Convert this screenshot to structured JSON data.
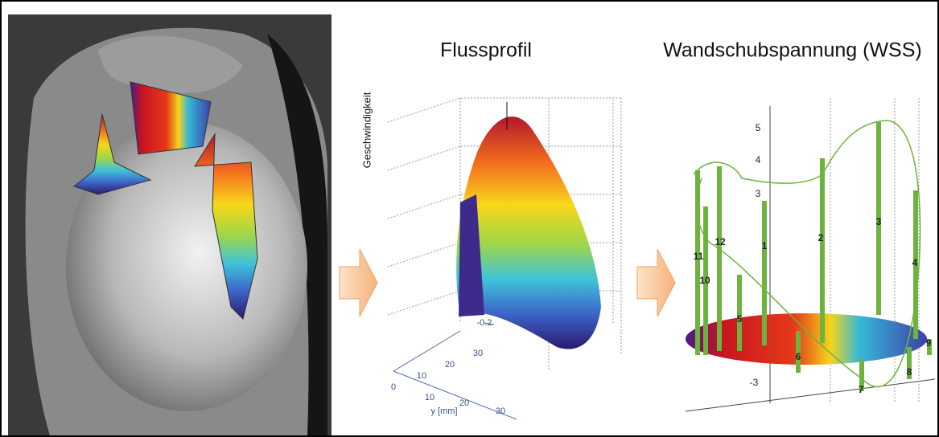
{
  "panels": [
    {
      "title": "Flussprofil",
      "axis_label": "Geschwindigkeit",
      "tick_labels": [
        "-0.2",
        "0",
        "10",
        "20",
        "30",
        "10",
        "20",
        "30",
        "y [mm]"
      ]
    },
    {
      "title": "Wandschubspannung (WSS)",
      "tick_labels": [
        "5",
        "4",
        "3",
        "-3"
      ],
      "segment_labels": [
        "11",
        "12",
        "10",
        "1",
        "2",
        "3",
        "4",
        "5",
        "6",
        "7",
        "8",
        "9"
      ]
    }
  ]
}
